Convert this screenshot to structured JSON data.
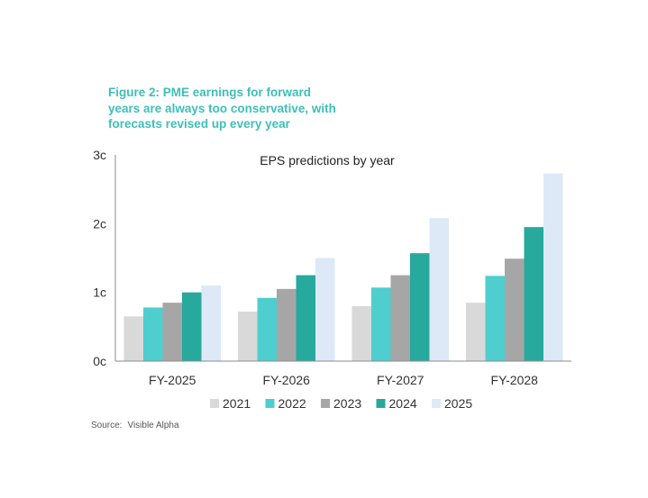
{
  "figure": {
    "title": "Figure 2: PME earnings for forward\nyears are always too conservative, with\nforecasts revised up every year",
    "source_label": "Source:",
    "source_value": "Visible Alpha"
  },
  "chart_data": {
    "type": "bar",
    "title": "EPS predictions by year",
    "xlabel": "",
    "ylabel": "",
    "categories": [
      "FY-2025",
      "FY-2026",
      "FY-2027",
      "FY-2028"
    ],
    "y_ticks": [
      {
        "value": 0,
        "label": "0c"
      },
      {
        "value": 1,
        "label": "1c"
      },
      {
        "value": 2,
        "label": "2c"
      },
      {
        "value": 3,
        "label": "3c"
      }
    ],
    "ylim": [
      0,
      3
    ],
    "grid": false,
    "legend_position": "bottom",
    "series": [
      {
        "name": "2021",
        "color": "#d9d9d9",
        "values": [
          0.65,
          0.72,
          0.8,
          0.85
        ]
      },
      {
        "name": "2022",
        "color": "#4ecece",
        "values": [
          0.78,
          0.92,
          1.07,
          1.24
        ]
      },
      {
        "name": "2023",
        "color": "#a6a6a6",
        "values": [
          0.85,
          1.05,
          1.25,
          1.49
        ]
      },
      {
        "name": "2024",
        "color": "#27a99d",
        "values": [
          1.0,
          1.25,
          1.57,
          1.95
        ]
      },
      {
        "name": "2025",
        "color": "#dde9f6",
        "values": [
          1.1,
          1.5,
          2.08,
          2.73
        ]
      }
    ]
  }
}
